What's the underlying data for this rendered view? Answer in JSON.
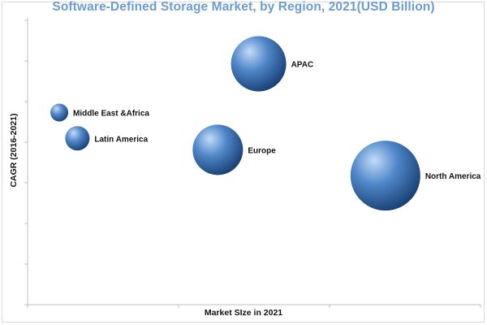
{
  "chart_data": {
    "type": "bubble",
    "title": "Software-Defined Storage Market, by Region, 2021(USD Billion)",
    "xlabel": "Market SIze in 2021",
    "ylabel": "CAGR (2016-2021)",
    "grid": false,
    "tick_labels_shown": false,
    "xlim": [
      0,
      100
    ],
    "ylim": [
      0,
      100
    ],
    "series": [
      {
        "name": "Middle East &Africa",
        "x": 7,
        "y": 67,
        "size": 11
      },
      {
        "name": "Latin America",
        "x": 11,
        "y": 58,
        "size": 15
      },
      {
        "name": "Europe",
        "x": 42,
        "y": 54,
        "size": 31
      },
      {
        "name": "APAC",
        "x": 51,
        "y": 84,
        "size": 34
      },
      {
        "name": "North America",
        "x": 79,
        "y": 45,
        "size": 43
      }
    ],
    "colors": {
      "bubble_light": "#c3dcf7",
      "bubble_mid": "#4f87c9",
      "bubble_dark": "#173e72",
      "title": "#6b9ccf"
    }
  }
}
